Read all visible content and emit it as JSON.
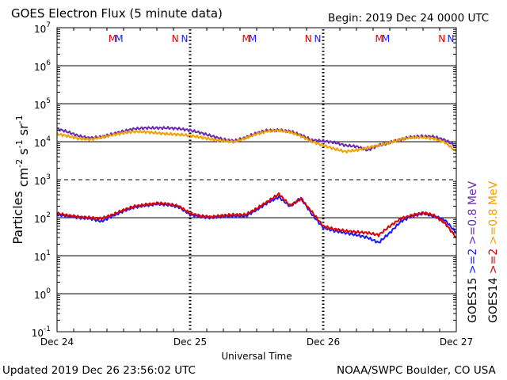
{
  "header": {
    "title": "GOES Electron Flux (5 minute data)",
    "begin": "Begin: 2019 Dec 24 0000 UTC"
  },
  "footer": {
    "updated": "Updated 2019 Dec 26 23:56:02 UTC",
    "credit": "NOAA/SWPC Boulder, CO USA"
  },
  "chart_data": {
    "type": "line",
    "title": "GOES Electron Flux (5 minute data)",
    "xlabel": "Universal Time",
    "ylabel": "Particles cm-2 s-1 sr-1",
    "yscale": "log",
    "ylim": [
      0.1,
      10000000
    ],
    "y_ticks": [
      {
        "base": "10",
        "exp": "7"
      },
      {
        "base": "10",
        "exp": "6"
      },
      {
        "base": "10",
        "exp": "5"
      },
      {
        "base": "10",
        "exp": "4"
      },
      {
        "base": "10",
        "exp": "3"
      },
      {
        "base": "10",
        "exp": "2"
      },
      {
        "base": "10",
        "exp": "1"
      },
      {
        "base": "10",
        "exp": "0"
      },
      {
        "base": "10",
        "exp": "-1"
      }
    ],
    "xlim": [
      0,
      72
    ],
    "x_ticks": [
      "Dec 24",
      "Dec 25",
      "Dec 26",
      "Dec 27"
    ],
    "grid": "horizontal decades; dashed line at 10^3",
    "markers": [
      {
        "text": "M",
        "color": "#dd0000",
        "x": 10.0
      },
      {
        "text": "M",
        "color": "#1a1aff",
        "x": 11.2
      },
      {
        "text": "N",
        "color": "#dd0000",
        "x": 21.3
      },
      {
        "text": "N",
        "color": "#1a1aff",
        "x": 23.0
      },
      {
        "text": "M",
        "color": "#dd0000",
        "x": 34.1
      },
      {
        "text": "M",
        "color": "#1a1aff",
        "x": 35.3
      },
      {
        "text": "N",
        "color": "#dd0000",
        "x": 45.3
      },
      {
        "text": "N",
        "color": "#1a1aff",
        "x": 47.0
      },
      {
        "text": "M",
        "color": "#dd0000",
        "x": 58.1
      },
      {
        "text": "M",
        "color": "#1a1aff",
        "x": 59.3
      },
      {
        "text": "N",
        "color": "#dd0000",
        "x": 69.4
      },
      {
        "text": "N",
        "color": "#1a1aff",
        "x": 71.0
      }
    ],
    "legend": [
      {
        "label": "GOES15",
        "color": "#000000"
      },
      {
        "label": ">=2",
        "color": "#1a1aff"
      },
      {
        "label": ">=0.8 MeV",
        "color": "#6a2cb0"
      },
      {
        "label": "GOES14",
        "color": "#000000"
      },
      {
        "label": ">=2",
        "color": "#dd0000"
      },
      {
        "label": ">=0.8 MeV",
        "color": "#f0a000"
      }
    ],
    "series": [
      {
        "color": "#6a2cb0",
        "x": [
          0,
          2,
          4,
          6,
          8,
          10,
          12,
          14,
          16,
          18,
          20,
          22,
          24,
          26,
          28,
          30,
          32,
          34,
          36,
          38,
          40,
          42,
          44,
          46,
          48,
          50,
          52,
          54,
          56,
          58,
          60,
          62,
          64,
          66,
          68,
          70,
          72
        ],
        "values": [
          22000,
          18000,
          14000,
          12500,
          13500,
          16000,
          19000,
          22000,
          23000,
          23000,
          23000,
          22000,
          20000,
          17000,
          14000,
          11500,
          10500,
          13000,
          17000,
          20000,
          20000,
          19000,
          15000,
          11000,
          10500,
          9500,
          8000,
          7500,
          6000,
          8000,
          9500,
          11500,
          13500,
          14000,
          13500,
          11000,
          7500
        ]
      },
      {
        "color": "#f0a000",
        "x": [
          0,
          2,
          4,
          6,
          8,
          10,
          12,
          14,
          16,
          18,
          20,
          22,
          24,
          26,
          28,
          30,
          32,
          34,
          36,
          38,
          40,
          42,
          44,
          46,
          48,
          50,
          52,
          54,
          56,
          58,
          60,
          62,
          64,
          66,
          68,
          70,
          72
        ],
        "values": [
          16000,
          14000,
          12000,
          11500,
          13000,
          15000,
          17000,
          18500,
          18000,
          17000,
          16000,
          15500,
          14500,
          13000,
          11500,
          10500,
          10000,
          12500,
          16000,
          19000,
          20000,
          18000,
          14000,
          10000,
          8000,
          6500,
          5500,
          6000,
          7000,
          8000,
          9500,
          11500,
          13000,
          13000,
          12000,
          9500,
          5500
        ]
      },
      {
        "color": "#1a1aff",
        "x": [
          0,
          2,
          4,
          6,
          8,
          10,
          12,
          14,
          16,
          18,
          20,
          22,
          24,
          26,
          28,
          30,
          32,
          34,
          36,
          38,
          40,
          42,
          44,
          46,
          48,
          50,
          52,
          54,
          56,
          58,
          60,
          62,
          64,
          66,
          68,
          70,
          72
        ],
        "values": [
          120,
          110,
          100,
          95,
          80,
          110,
          150,
          190,
          210,
          230,
          220,
          190,
          120,
          105,
          100,
          110,
          110,
          110,
          160,
          250,
          350,
          200,
          330,
          120,
          55,
          45,
          40,
          35,
          30,
          22,
          40,
          80,
          110,
          130,
          110,
          85,
          40
        ]
      },
      {
        "color": "#dd0000",
        "x": [
          0,
          2,
          4,
          6,
          8,
          10,
          12,
          14,
          16,
          18,
          20,
          22,
          24,
          26,
          28,
          30,
          32,
          34,
          36,
          38,
          40,
          42,
          44,
          46,
          48,
          50,
          52,
          54,
          56,
          58,
          60,
          62,
          64,
          66,
          68,
          70,
          72
        ],
        "values": [
          130,
          115,
          105,
          100,
          95,
          120,
          160,
          200,
          220,
          240,
          230,
          200,
          130,
          110,
          105,
          115,
          120,
          120,
          175,
          270,
          420,
          210,
          310,
          140,
          60,
          50,
          45,
          42,
          40,
          35,
          60,
          95,
          115,
          135,
          115,
          70,
          30
        ]
      }
    ]
  }
}
